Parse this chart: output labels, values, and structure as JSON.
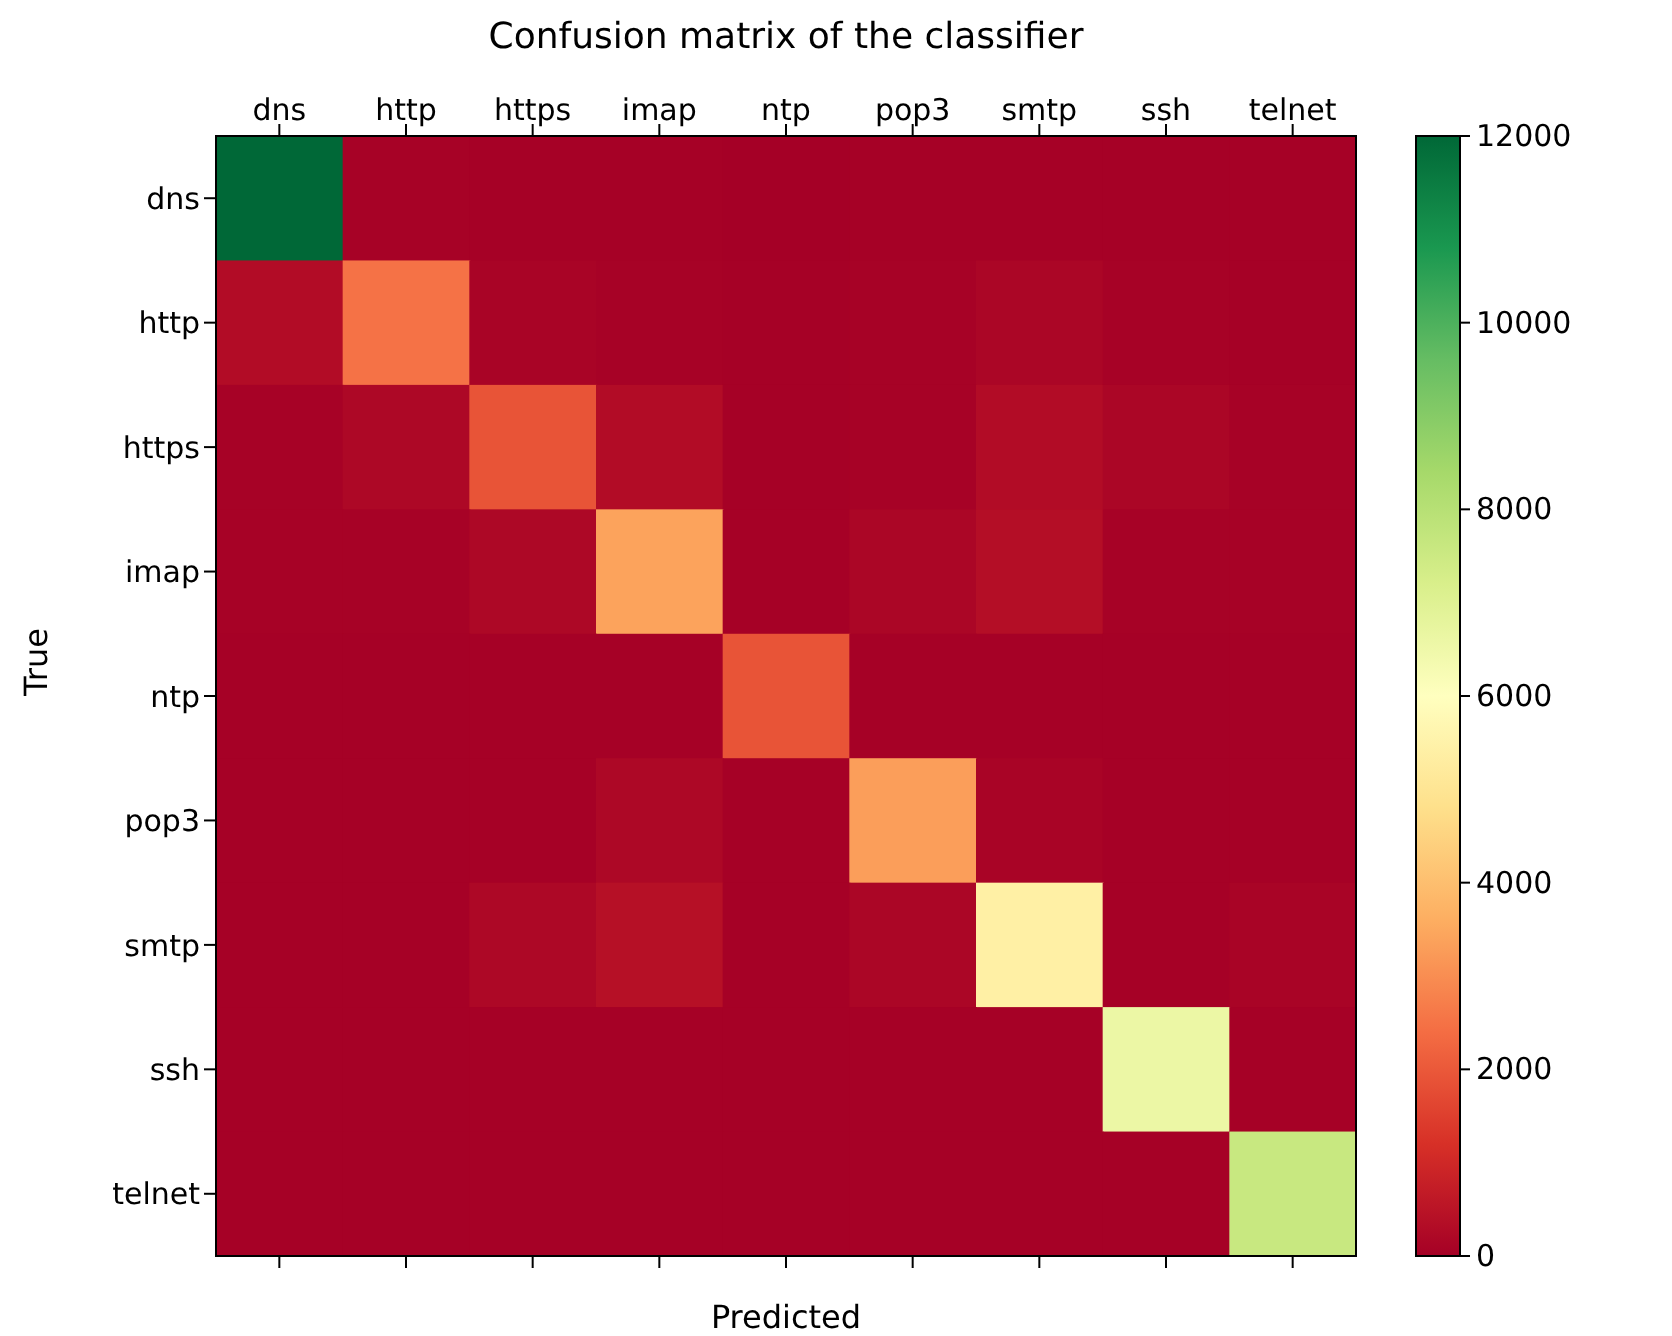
{
  "chart_data": {
    "type": "heatmap",
    "title": "Confusion matrix of the classifier",
    "xlabel": "Predicted",
    "ylabel": "True",
    "categories": [
      "dns",
      "http",
      "https",
      "imap",
      "ntp",
      "pop3",
      "smtp",
      "ssh",
      "telnet"
    ],
    "y_categories": [
      "dns",
      "http",
      "https",
      "imap",
      "ntp",
      "pop3",
      "smtp",
      "ssh",
      "telnet"
    ],
    "cells": [
      [
        12000,
        50,
        20,
        20,
        10,
        20,
        20,
        20,
        20
      ],
      [
        300,
        2500,
        100,
        50,
        20,
        50,
        150,
        50,
        20
      ],
      [
        50,
        200,
        1900,
        300,
        20,
        50,
        300,
        150,
        50
      ],
      [
        50,
        50,
        200,
        3400,
        20,
        150,
        350,
        50,
        50
      ],
      [
        20,
        20,
        20,
        20,
        1900,
        20,
        20,
        20,
        20
      ],
      [
        20,
        20,
        20,
        200,
        20,
        3300,
        100,
        20,
        20
      ],
      [
        20,
        20,
        200,
        400,
        20,
        150,
        5400,
        20,
        100
      ],
      [
        20,
        20,
        20,
        20,
        20,
        20,
        20,
        6600,
        20
      ],
      [
        20,
        20,
        20,
        20,
        20,
        20,
        20,
        20,
        7600
      ]
    ],
    "clim": [
      0,
      12000
    ],
    "cticks": [
      0,
      2000,
      4000,
      6000,
      8000,
      10000,
      12000
    ]
  }
}
